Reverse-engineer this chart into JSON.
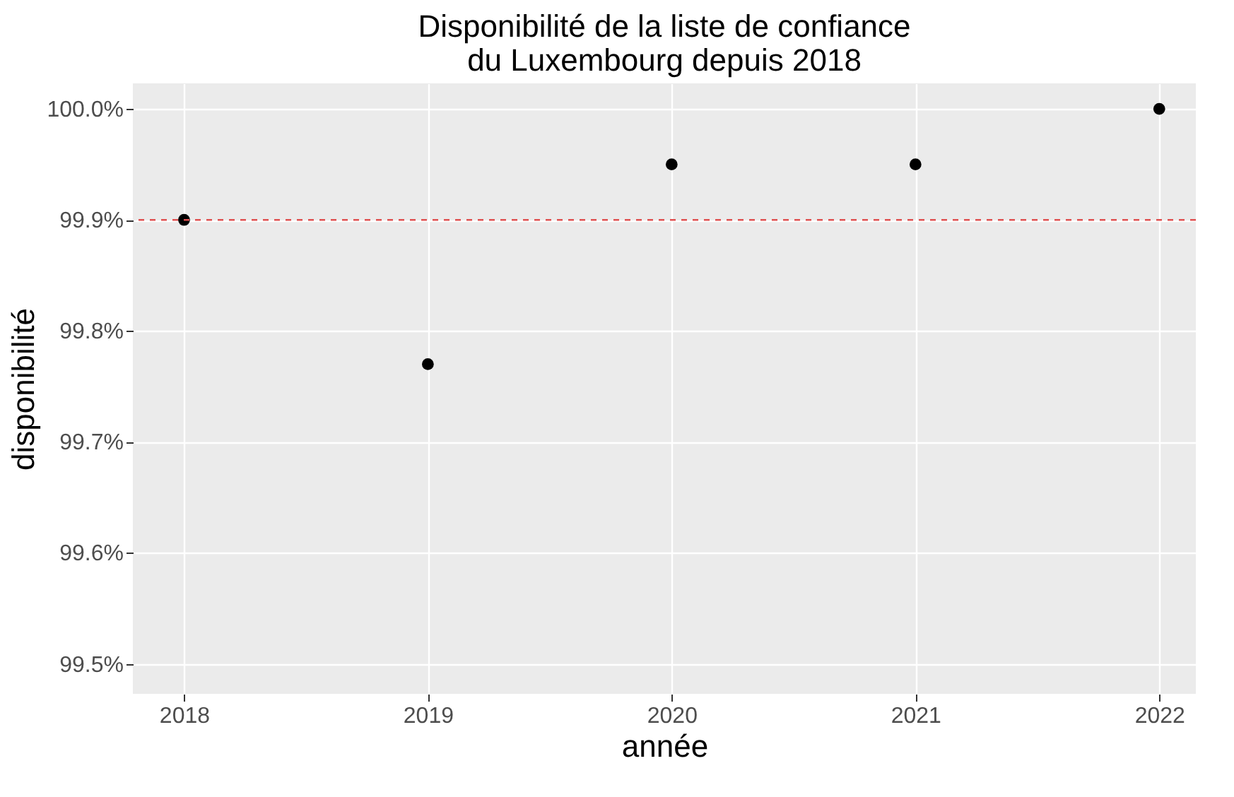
{
  "chart_data": {
    "type": "scatter",
    "title": "Disponibilité de la liste de confiance\ndu Luxembourg depuis 2018",
    "xlabel": "année",
    "ylabel": "disponibilité",
    "x": [
      2018,
      2019,
      2020,
      2021,
      2022
    ],
    "series": [
      {
        "color": "#000000",
        "values": [
          99.9,
          99.77,
          99.95,
          99.95,
          100.0
        ]
      }
    ],
    "xlim": [
      2017.79,
      2022.15
    ],
    "xticks": [
      2018,
      2019,
      2020,
      2021,
      2022
    ],
    "ylim": [
      99.473,
      100.023
    ],
    "yticks": [
      {
        "value": 99.5,
        "label": "99.5%"
      },
      {
        "value": 99.6,
        "label": "99.6%"
      },
      {
        "value": 99.7,
        "label": "99.7%"
      },
      {
        "value": 99.8,
        "label": "99.8%"
      },
      {
        "value": 99.9,
        "label": "99.9%"
      },
      {
        "value": 100.0,
        "label": "100.0%"
      }
    ],
    "ref_lines": [
      {
        "axis": "y",
        "value": 99.9,
        "color": "#e05050",
        "line_style": "dashed"
      }
    ],
    "grid": true,
    "marker": "circle"
  }
}
